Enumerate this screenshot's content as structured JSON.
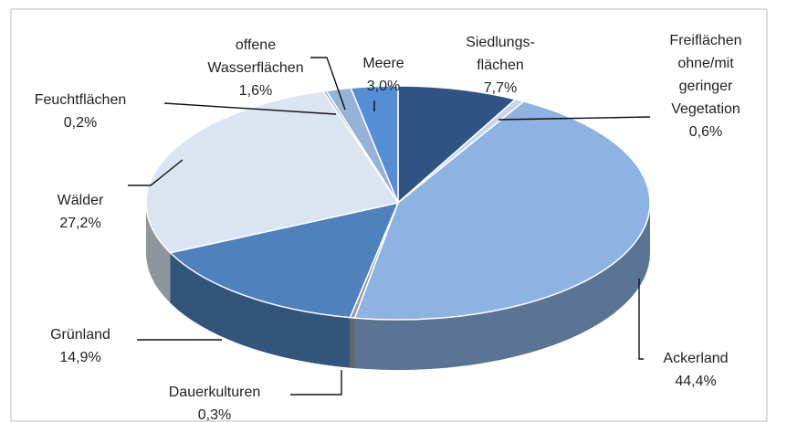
{
  "chart_data": {
    "type": "pie3d",
    "categories": [
      "Siedlungs-\nflächen",
      "Freiflächen\nohne/mit\ngeringer\nVegetation",
      "Ackerland",
      "Dauerkulturen",
      "Grünland",
      "Wälder",
      "Feuchtflächen",
      "offene\nWasserflächen",
      "Meere"
    ],
    "values": [
      7.7,
      0.6,
      44.4,
      0.3,
      14.9,
      27.2,
      0.2,
      1.6,
      3.0
    ],
    "value_labels": [
      "7,7%",
      "0,6%",
      "44,4%",
      "0,3%",
      "14,9%",
      "27,2%",
      "0,2%",
      "1,6%",
      "3,0%"
    ],
    "colors": [
      "#2f5483",
      "#c6d5ea",
      "#8db3e2",
      "#9c9c9c",
      "#4f81bd",
      "#dbe5f1",
      "#9aa9bc",
      "#95b3d7",
      "#558ed5"
    ]
  }
}
